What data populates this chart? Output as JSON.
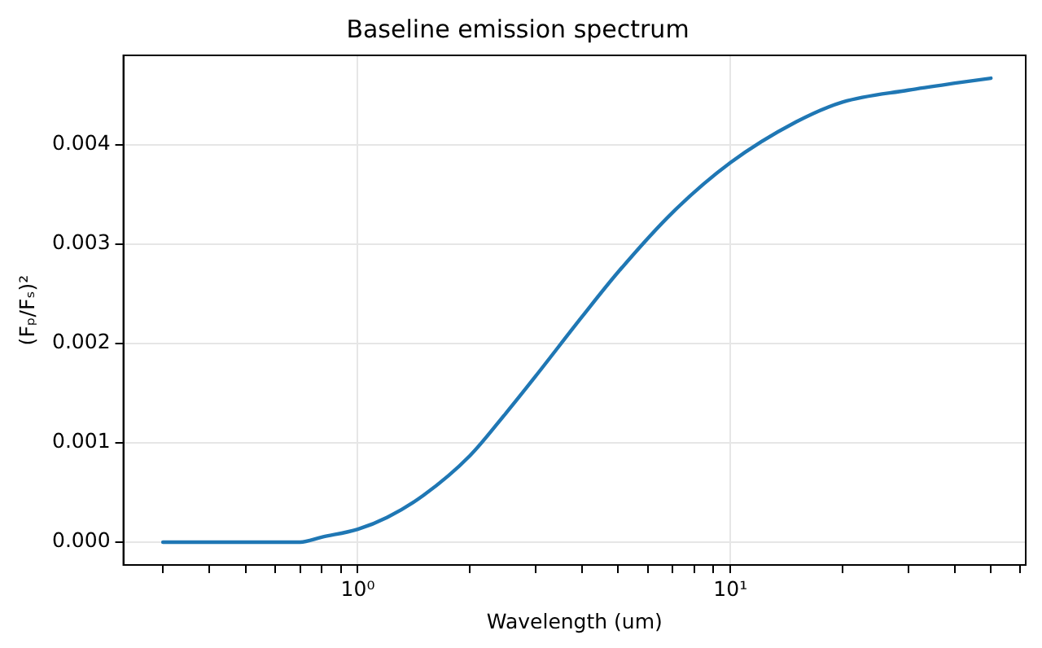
{
  "chart_data": {
    "type": "line",
    "title": "Baseline emission spectrum",
    "xlabel": "Wavelength (um)",
    "ylabel": "(Fₚ/Fₛ)²",
    "x": [
      0.3,
      0.5,
      0.7,
      0.8,
      1.0,
      1.2,
      1.5,
      2,
      2.5,
      3,
      4,
      5,
      7,
      10,
      15,
      20,
      30,
      40,
      50
    ],
    "series": [
      {
        "color": "#1f77b4",
        "values": [
          0,
          0,
          0,
          5e-05,
          0.00013,
          0.00025,
          0.00047,
          0.00087,
          0.0013,
          0.00167,
          0.00227,
          0.00272,
          0.00332,
          0.00382,
          0.00423,
          0.00443,
          0.00455,
          0.00462,
          0.00467
        ]
      }
    ],
    "log": "x",
    "xlim": [
      0.235,
      62
    ],
    "xticks": [
      {
        "value": 0.3,
        "label": null
      },
      {
        "value": 0.4,
        "label": null
      },
      {
        "value": 0.5,
        "label": null
      },
      {
        "value": 0.6,
        "label": null
      },
      {
        "value": 0.7,
        "label": null
      },
      {
        "value": 0.8,
        "label": null
      },
      {
        "value": 0.9,
        "label": null
      },
      {
        "value": 1,
        "label": "10⁰"
      },
      {
        "value": 2,
        "label": null
      },
      {
        "value": 3,
        "label": null
      },
      {
        "value": 4,
        "label": null
      },
      {
        "value": 5,
        "label": null
      },
      {
        "value": 6,
        "label": null
      },
      {
        "value": 7,
        "label": null
      },
      {
        "value": 8,
        "label": null
      },
      {
        "value": 9,
        "label": null
      },
      {
        "value": 10,
        "label": "10¹"
      },
      {
        "value": 20,
        "label": null
      },
      {
        "value": 30,
        "label": null
      },
      {
        "value": 40,
        "label": null
      },
      {
        "value": 50,
        "label": null
      },
      {
        "value": 60,
        "label": null
      }
    ],
    "ylim": [
      -0.00023,
      0.0049
    ],
    "yticks": [
      {
        "value": 0,
        "label": "0.000"
      },
      {
        "value": 0.001,
        "label": "0.001"
      },
      {
        "value": 0.002,
        "label": "0.002"
      },
      {
        "value": 0.003,
        "label": "0.003"
      },
      {
        "value": 0.004,
        "label": "0.004"
      }
    ],
    "grid": true,
    "marker": "none",
    "line_style": "solid"
  }
}
